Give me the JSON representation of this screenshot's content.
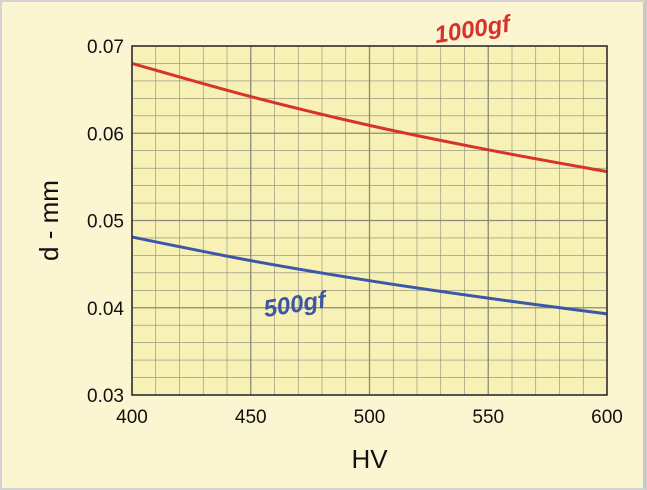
{
  "chart_data": {
    "type": "line",
    "title": "",
    "xlabel": "HV",
    "ylabel": "d - mm",
    "xlim": [
      400,
      600
    ],
    "ylim": [
      0.03,
      0.07
    ],
    "x_ticks": [
      "400",
      "450",
      "500",
      "550",
      "600"
    ],
    "y_ticks": [
      "0.03",
      "0.04",
      "0.05",
      "0.06",
      "0.07"
    ],
    "grid": true,
    "legend": "none",
    "series": [
      {
        "name": "1000gf",
        "color": "#d8322c",
        "x": [
          400,
          450,
          500,
          550,
          600
        ],
        "values": [
          0.068,
          0.0642,
          0.0609,
          0.0581,
          0.0556
        ]
      },
      {
        "name": "500gf",
        "color": "#3b57a6",
        "x": [
          400,
          450,
          500,
          550,
          600
        ],
        "values": [
          0.0481,
          0.0454,
          0.0431,
          0.0411,
          0.0393
        ]
      }
    ],
    "colors": {
      "background": "#fbf5d2",
      "plot": "#f7f1b6",
      "grid": "#8a8a78"
    }
  }
}
